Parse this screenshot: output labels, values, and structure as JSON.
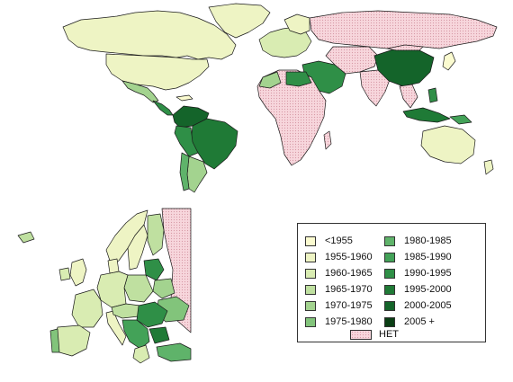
{
  "legend": {
    "items": [
      {
        "label": "<1955",
        "color": "#fbfbd0"
      },
      {
        "label": "1955-1960",
        "color": "#eef4c4"
      },
      {
        "label": "1960-1965",
        "color": "#d9ecb2"
      },
      {
        "label": "1965-1970",
        "color": "#bfe0a0"
      },
      {
        "label": "1970-1975",
        "color": "#a3d38f"
      },
      {
        "label": "1975-1980",
        "color": "#82c47b"
      },
      {
        "label": "1980-1985",
        "color": "#5fb36a"
      },
      {
        "label": "1985-1990",
        "color": "#43a258"
      },
      {
        "label": "1990-1995",
        "color": "#2f8f47"
      },
      {
        "label": "1995-2000",
        "color": "#1f7a36"
      },
      {
        "label": "2000-2005",
        "color": "#14642a"
      },
      {
        "label": "2005 +",
        "color": "#0a3e14"
      }
    ],
    "net": {
      "label": "НЕТ",
      "color": "#f7d6dc"
    }
  },
  "colors": {
    "border": "#1a1a1a",
    "water": "#ffffff"
  }
}
